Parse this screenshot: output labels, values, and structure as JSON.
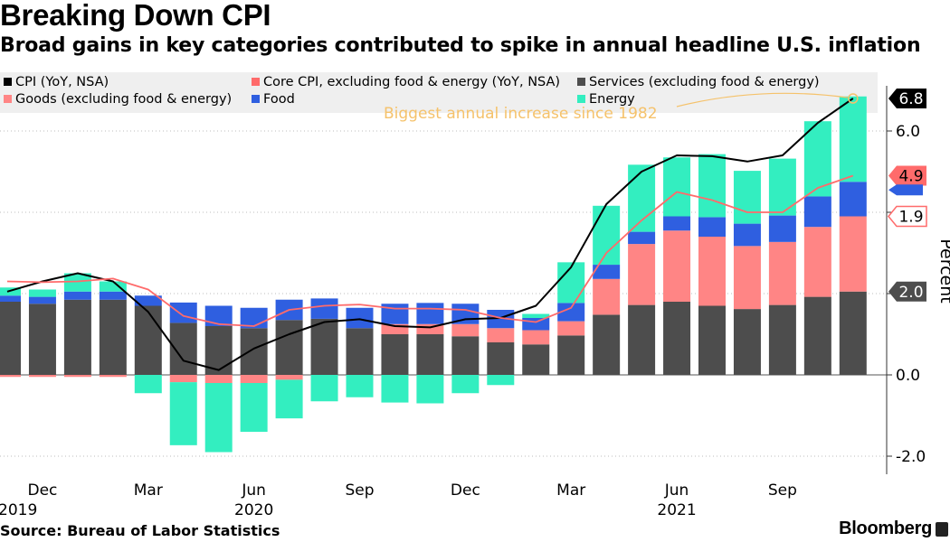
{
  "header": {
    "title": "Breaking Down CPI",
    "subtitle": "Broad gains in key categories contributed to spike in annual headline U.S. inflation"
  },
  "footer": {
    "source": "Source: Bureau of Labor Statistics",
    "brand": "Bloomberg"
  },
  "chart_data": {
    "type": "bar",
    "subtype": "stacked bar with lines",
    "title": "Breaking Down CPI",
    "subtitle": "Broad gains in key categories contributed to spike in annual headline U.S. inflation",
    "ylabel": "Percent",
    "ylim": [
      -2.6,
      6.8
    ],
    "yticks": [
      -2.0,
      0.0,
      2.0,
      4.0,
      6.0
    ],
    "ytick_labels": [
      "-2.0",
      "0.0",
      "",
      "",
      "6.0"
    ],
    "months": [
      "Nov 2019",
      "Dec 2019",
      "Jan 2020",
      "Feb 2020",
      "Mar 2020",
      "Apr 2020",
      "May 2020",
      "Jun 2020",
      "Jul 2020",
      "Aug 2020",
      "Sep 2020",
      "Oct 2020",
      "Nov 2020",
      "Dec 2020",
      "Jan 2021",
      "Feb 2021",
      "Mar 2021",
      "Apr 2021",
      "May 2021",
      "Jun 2021",
      "Jul 2021",
      "Aug 2021",
      "Sep 2021",
      "Oct 2021",
      "Nov 2021"
    ],
    "x_tick_labels": [
      {
        "index": 1,
        "label": "Dec",
        "year": "2019"
      },
      {
        "index": 4,
        "label": "Mar",
        "year": ""
      },
      {
        "index": 7,
        "label": "Jun",
        "year": "2020"
      },
      {
        "index": 10,
        "label": "Sep",
        "year": ""
      },
      {
        "index": 13,
        "label": "Dec",
        "year": ""
      },
      {
        "index": 16,
        "label": "Mar",
        "year": ""
      },
      {
        "index": 19,
        "label": "Jun",
        "year": "2021"
      },
      {
        "index": 22,
        "label": "Sep",
        "year": ""
      }
    ],
    "year_edge_label": "2019",
    "legend": [
      {
        "key": "cpi",
        "name": "CPI (YoY, NSA)",
        "color": "#000000"
      },
      {
        "key": "core",
        "name": "Core CPI, excluding food & energy (YoY, NSA)",
        "color": "#ff6b6b"
      },
      {
        "key": "services",
        "name": "Services (excluding food & energy)",
        "color": "#4d4d4d"
      },
      {
        "key": "goods",
        "name": "Goods (excluding food & energy)",
        "color": "#ff8585"
      },
      {
        "key": "food",
        "name": "Food",
        "color": "#2f5fe0"
      },
      {
        "key": "energy",
        "name": "Energy",
        "color": "#33eec0"
      }
    ],
    "series": [
      {
        "name": "Services (excluding food & energy)",
        "key": "services",
        "color": "#4d4d4d",
        "values": [
          1.8,
          1.75,
          1.85,
          1.85,
          1.7,
          1.28,
          1.2,
          1.15,
          1.35,
          1.38,
          1.15,
          1.0,
          1.0,
          0.95,
          0.8,
          0.75,
          0.97,
          1.48,
          1.72,
          1.8,
          1.7,
          1.62,
          1.72,
          1.92,
          2.05
        ]
      },
      {
        "name": "Goods (excluding food & energy)",
        "key": "goods",
        "color": "#ff8585",
        "values": [
          -0.05,
          -0.05,
          -0.05,
          -0.05,
          0.0,
          -0.18,
          -0.2,
          -0.2,
          -0.12,
          0.0,
          0.0,
          0.25,
          0.25,
          0.3,
          0.35,
          0.35,
          0.35,
          0.88,
          1.5,
          1.75,
          1.7,
          1.55,
          1.55,
          1.72,
          1.85
        ]
      },
      {
        "name": "Food",
        "key": "food",
        "color": "#2f5fe0",
        "values": [
          0.15,
          0.17,
          0.2,
          0.2,
          0.25,
          0.5,
          0.5,
          0.5,
          0.5,
          0.5,
          0.5,
          0.5,
          0.52,
          0.5,
          0.45,
          0.3,
          0.45,
          0.35,
          0.3,
          0.35,
          0.48,
          0.55,
          0.65,
          0.75,
          0.85
        ]
      },
      {
        "name": "Energy",
        "key": "energy",
        "color": "#33eec0",
        "values": [
          0.2,
          0.18,
          0.45,
          0.25,
          -0.45,
          -1.55,
          -1.7,
          -1.2,
          -0.95,
          -0.65,
          -0.55,
          -0.68,
          -0.7,
          -0.45,
          -0.25,
          0.1,
          1.0,
          1.45,
          1.65,
          1.45,
          1.55,
          1.3,
          1.4,
          1.85,
          2.1
        ]
      },
      {
        "name": "CPI (YoY, NSA)",
        "key": "cpi",
        "type": "line",
        "color": "#000000",
        "values": [
          2.05,
          2.3,
          2.5,
          2.3,
          1.55,
          0.35,
          0.12,
          0.65,
          1.0,
          1.3,
          1.37,
          1.2,
          1.17,
          1.37,
          1.4,
          1.7,
          2.65,
          4.2,
          5.0,
          5.4,
          5.38,
          5.25,
          5.4,
          6.2,
          6.8
        ]
      },
      {
        "name": "Core CPI, excluding food & energy (YoY, NSA)",
        "key": "core",
        "type": "line",
        "color": "#ff6b6b",
        "values": [
          2.3,
          2.28,
          2.3,
          2.37,
          2.1,
          1.45,
          1.25,
          1.2,
          1.6,
          1.7,
          1.73,
          1.63,
          1.63,
          1.6,
          1.4,
          1.3,
          1.65,
          3.0,
          3.8,
          4.5,
          4.3,
          4.0,
          4.0,
          4.6,
          4.9
        ]
      }
    ],
    "end_labels": [
      {
        "value": "6.8",
        "y": 6.8,
        "bg": "#000000",
        "fg": "#ffffff"
      },
      {
        "value": "4.9",
        "y": 4.9,
        "bg": "#ff6b6b",
        "fg": "#000000"
      },
      {
        "value": "1.9",
        "y": 3.9,
        "bg": "#ffffff",
        "fg": "#000000",
        "border": "#ff6b6b"
      },
      {
        "value": "2.0",
        "y": 2.05,
        "bg": "#4d4d4d",
        "fg": "#ffffff"
      }
    ],
    "annotation": {
      "text": "Biggest annual increase since 1982",
      "color": "#f5c26b",
      "month_index": 24,
      "y": 6.8
    }
  }
}
